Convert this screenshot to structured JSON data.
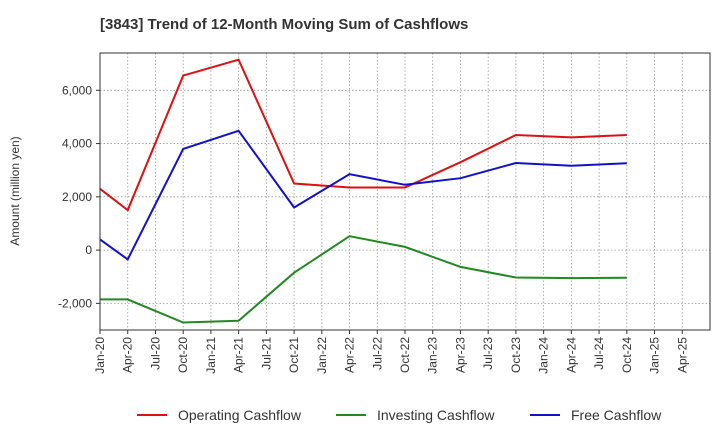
{
  "chart_data": {
    "type": "line",
    "title": "[3843]  Trend of 12-Month Moving Sum of Cashflows",
    "xlabel": "",
    "ylabel": "Amount (million yen)",
    "x": [
      "Jan-20",
      "Apr-20",
      "Jul-20",
      "Oct-20",
      "Jan-21",
      "Apr-21",
      "Jul-21",
      "Oct-21",
      "Jan-22",
      "Apr-22",
      "Jul-22",
      "Oct-22",
      "Jan-23",
      "Apr-23",
      "Jul-23",
      "Oct-23",
      "Jan-24",
      "Apr-24",
      "Jul-24",
      "Oct-24",
      "Jan-25",
      "Apr-25"
    ],
    "ylim": [
      -3000,
      7400
    ],
    "yticks": [
      -2000,
      0,
      2000,
      4000,
      6000
    ],
    "ytick_labels": [
      "-2,000",
      "0",
      "2,000",
      "4,000",
      "6,000"
    ],
    "grid": true,
    "legend_position": "bottom",
    "series": [
      {
        "name": "Operating Cashflow",
        "color": "#dd1111",
        "values": [
          2300,
          1500,
          null,
          6550,
          null,
          7150,
          null,
          2500,
          null,
          2350,
          null,
          2350,
          null,
          3300,
          null,
          4320,
          null,
          4230,
          null,
          4320,
          null,
          null
        ]
      },
      {
        "name": "Investing Cashflow",
        "color": "#228822",
        "values": [
          -1850,
          -1850,
          null,
          -2720,
          null,
          -2650,
          null,
          -850,
          null,
          520,
          null,
          120,
          null,
          -630,
          null,
          -1030,
          null,
          -1050,
          null,
          -1040,
          null,
          null
        ]
      },
      {
        "name": "Free Cashflow",
        "color": "#1111cc",
        "values": [
          400,
          -350,
          null,
          3800,
          null,
          4480,
          null,
          1600,
          null,
          2850,
          null,
          2450,
          null,
          2700,
          null,
          3270,
          null,
          3170,
          null,
          3260,
          null,
          null
        ]
      }
    ]
  }
}
